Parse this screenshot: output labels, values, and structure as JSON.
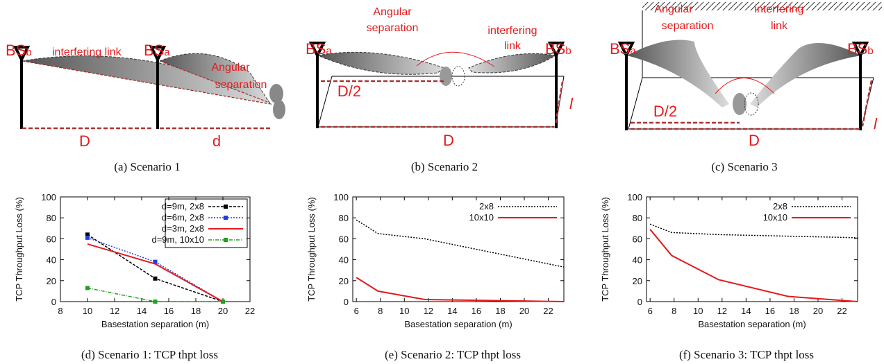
{
  "diagrams": [
    {
      "bs_left": {
        "main": "BS",
        "sub": "b"
      },
      "link": "interfering link",
      "bs_right": {
        "main": "BS",
        "sub": "a"
      },
      "angular": [
        "Angular",
        "separation"
      ],
      "dim1": "D",
      "dim2": "d",
      "caption": "(a) Scenario 1"
    },
    {
      "bs_left": {
        "main": "BS",
        "sub": "a"
      },
      "bs_right": {
        "main": "BS",
        "sub": "b"
      },
      "angular": [
        "Angular",
        "separation"
      ],
      "link": [
        "interfering",
        "link"
      ],
      "half": "D/2",
      "dim": "D",
      "depth": "l",
      "caption": "(b) Scenario 2"
    },
    {
      "bs_left": {
        "main": "BS",
        "sub": "a"
      },
      "bs_right": {
        "main": "BS",
        "sub": "b"
      },
      "angular": [
        "Angular",
        "separation"
      ],
      "link": [
        "interfering",
        "link"
      ],
      "half": "D/2",
      "dim": "D",
      "depth": "l",
      "caption": "(c) Scenario 3"
    }
  ],
  "chart_data": [
    {
      "type": "line",
      "caption": "(d) Scenario 1: TCP thpt loss",
      "xlabel": "Basestation separation (m)",
      "ylabel": "TCP Throughput Loss (%)",
      "xlim": [
        8,
        22
      ],
      "xticks": [
        8,
        10,
        12,
        14,
        16,
        18,
        20,
        22
      ],
      "ylim": [
        0,
        100
      ],
      "yticks": [
        0,
        20,
        40,
        60,
        80,
        100
      ],
      "legend": "upper right",
      "legend_box": true,
      "series": [
        {
          "name": "d=9m, 2x8",
          "color": "#000000",
          "dash": "4 2",
          "marker": true,
          "x": [
            10,
            15,
            20
          ],
          "values": [
            64,
            22,
            0
          ]
        },
        {
          "name": "d=6m, 2x8",
          "color": "#1f3fdf",
          "dash": "2 2",
          "marker": true,
          "x": [
            10,
            15,
            20
          ],
          "values": [
            61,
            38,
            0
          ]
        },
        {
          "name": "d=3m, 2x8",
          "color": "#e41a1c",
          "dash": "",
          "marker": false,
          "x": [
            10,
            15,
            20
          ],
          "values": [
            55,
            36,
            0
          ]
        },
        {
          "name": "d=9m, 10x10",
          "color": "#22a022",
          "dash": "5 2 1 2",
          "marker": true,
          "x": [
            10,
            15,
            20
          ],
          "values": [
            13,
            0,
            0
          ]
        }
      ]
    },
    {
      "type": "line",
      "caption": "(e) Scenario 2: TCP thpt loss",
      "xlabel": "Basestation separation (m)",
      "ylabel": "TCP Throughput Loss (%)",
      "xlim": [
        5.7,
        23.3
      ],
      "xticks": [
        6,
        8,
        10,
        12,
        14,
        16,
        18,
        20,
        22
      ],
      "ylim": [
        0,
        100
      ],
      "yticks": [
        0,
        20,
        40,
        60,
        80,
        100
      ],
      "legend": "upper right",
      "legend_box": false,
      "series": [
        {
          "name": "2x8",
          "color": "#000000",
          "dash": "2 2",
          "marker": false,
          "x": [
            6,
            7.8,
            11.7,
            23.3
          ],
          "values": [
            78,
            65,
            60,
            33
          ]
        },
        {
          "name": "10x10",
          "color": "#e41a1c",
          "dash": "",
          "marker": false,
          "x": [
            6,
            7.8,
            11.7,
            23.3
          ],
          "values": [
            23,
            10,
            2,
            0
          ]
        }
      ]
    },
    {
      "type": "line",
      "caption": "(f) Scenario 3: TCP thpt loss",
      "xlabel": "Basestation separation (m)",
      "ylabel": "TCP Throughput Loss (%)",
      "xlim": [
        5.7,
        23.3
      ],
      "xticks": [
        6,
        8,
        10,
        12,
        14,
        16,
        18,
        20,
        22
      ],
      "ylim": [
        0,
        100
      ],
      "yticks": [
        0,
        20,
        40,
        60,
        80,
        100
      ],
      "legend": "upper right",
      "legend_box": false,
      "series": [
        {
          "name": "2x8",
          "color": "#000000",
          "dash": "2 2",
          "marker": false,
          "x": [
            6,
            7.8,
            11.7,
            23.3
          ],
          "values": [
            74,
            66,
            64,
            61
          ]
        },
        {
          "name": "10x10",
          "color": "#e41a1c",
          "dash": "",
          "marker": false,
          "x": [
            6,
            7.8,
            11.7,
            17.5,
            23.3
          ],
          "values": [
            69,
            44,
            21,
            5,
            0
          ]
        }
      ]
    }
  ]
}
